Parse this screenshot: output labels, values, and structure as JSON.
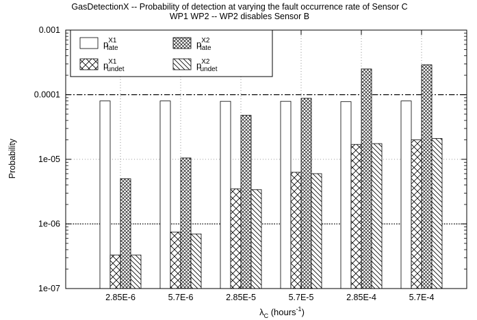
{
  "chart_data": {
    "type": "bar",
    "title_line1": "GasDetectionX -- Probability of detection at varying the fault occurrence rate of Sensor C",
    "title_line2": "WP1  WP2 -- WP2 disables Sensor B",
    "xlabel_main": "λ",
    "xlabel_sub": "C",
    "xlabel_rest": " (hours",
    "xlabel_exp": "-1",
    "xlabel_close": ")",
    "ylabel": "Probability",
    "y_scale": "log",
    "ylim": [
      1e-07,
      0.001
    ],
    "y_tick_labels": [
      "0.001",
      "0.0001",
      "1e-05",
      "1e-06",
      "1e-07"
    ],
    "y_tick_values": [
      0.001,
      0.0001,
      1e-05,
      1e-06,
      1e-07
    ],
    "grid": "dotted",
    "legend_position": "top-left",
    "categories": [
      "2.85E-6",
      "5.7E-6",
      "2.85E-5",
      "5.7E-5",
      "2.85E-4",
      "5.7E-4"
    ],
    "series": [
      {
        "name_base": "p",
        "name_sup": "X1",
        "name_sub": "late",
        "pattern": "none",
        "values": [
          8e-05,
          8e-05,
          7.9e-05,
          7.9e-05,
          7.8e-05,
          8e-05
        ]
      },
      {
        "name_base": "p",
        "name_sup": "X1",
        "name_sub": "undet",
        "pattern": "crosshatch-coarse",
        "values": [
          3.3e-07,
          7.5e-07,
          3.5e-06,
          6.3e-06,
          1.7e-05,
          2e-05
        ]
      },
      {
        "name_base": "p",
        "name_sup": "X2",
        "name_sub": "late",
        "pattern": "crosshatch-fine",
        "values": [
          5e-06,
          1.05e-05,
          4.8e-05,
          8.8e-05,
          0.00025,
          0.00029
        ]
      },
      {
        "name_base": "p",
        "name_sup": "X2",
        "name_sub": "undet",
        "pattern": "diagonal",
        "values": [
          3.3e-07,
          7e-07,
          3.4e-06,
          6e-06,
          1.75e-05,
          2.1e-05
        ]
      }
    ],
    "reference_lines": [
      {
        "value": 0.0001,
        "style": "dash-dot"
      },
      {
        "value": 1e-06,
        "style": "dotted"
      }
    ]
  }
}
